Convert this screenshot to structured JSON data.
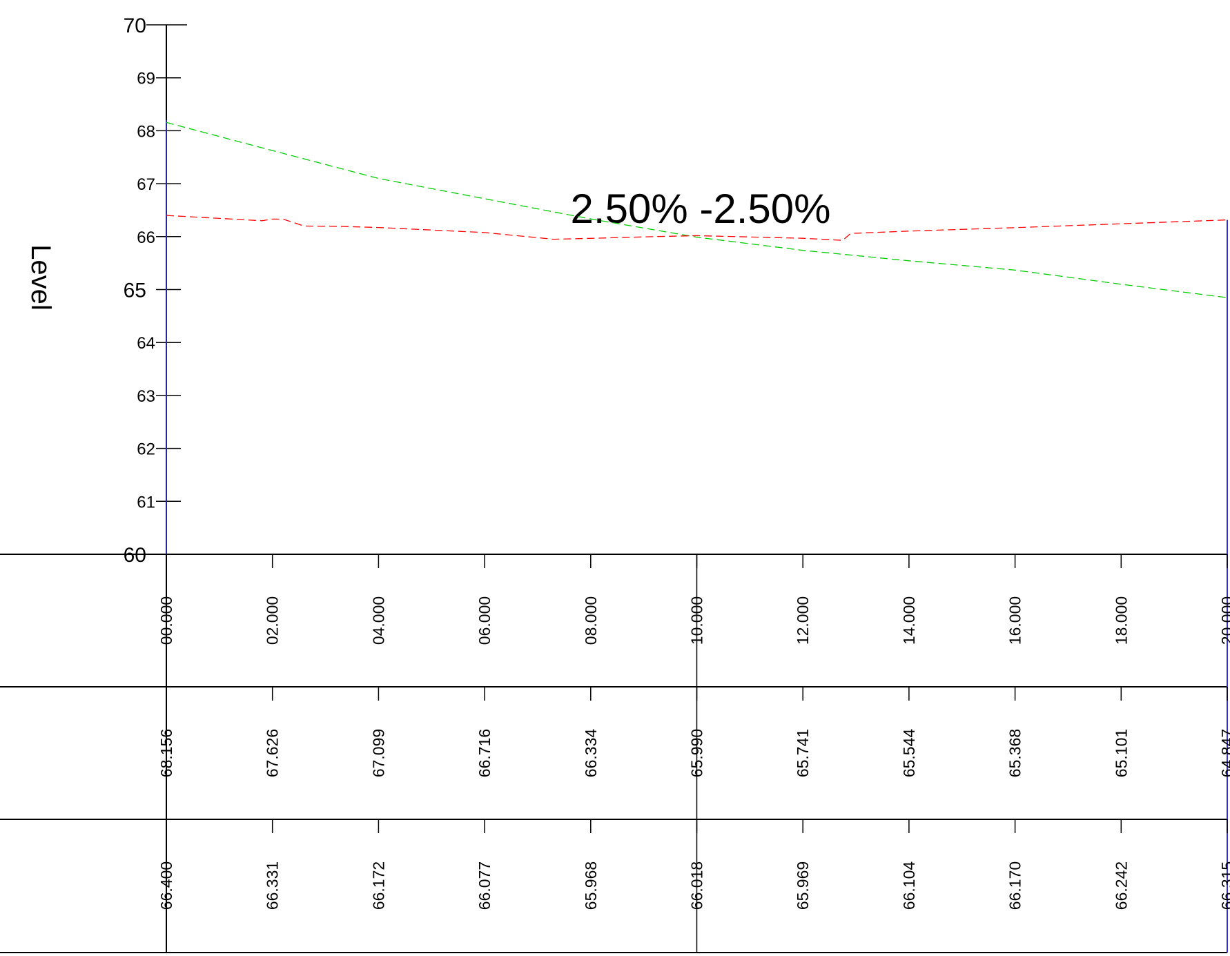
{
  "chart_data": {
    "type": "line",
    "ylabel": "Level",
    "ylim": [
      60,
      70
    ],
    "y_ticks": [
      "70",
      "69",
      "68",
      "67",
      "66",
      "65",
      "64",
      "63",
      "62",
      "61",
      "60"
    ],
    "grade_annotation": "2.50% -2.50%",
    "x": [
      0,
      2,
      4,
      6,
      8,
      10,
      12,
      14,
      16,
      18,
      20
    ],
    "chainage_labels": [
      "00.000",
      "02.000",
      "04.000",
      "06.000",
      "08.000",
      "10.000",
      "12.000",
      "14.000",
      "16.000",
      "18.000",
      "20.000"
    ],
    "row2_labels": [
      "68.156",
      "67.626",
      "67.099",
      "66.716",
      "66.334",
      "65.990",
      "65.741",
      "65.544",
      "65.368",
      "65.101",
      "64.847"
    ],
    "row3_labels": [
      "66.400",
      "66.331",
      "66.172",
      "66.077",
      "65.968",
      "66.018",
      "65.969",
      "66.104",
      "66.170",
      "66.242",
      "66.315"
    ],
    "series": [
      {
        "color": "#00cc00",
        "style": "dashed",
        "points": [
          [
            0,
            68.156
          ],
          [
            2,
            67.626
          ],
          [
            4,
            67.099
          ],
          [
            6,
            66.716
          ],
          [
            8,
            66.334
          ],
          [
            10,
            65.99
          ],
          [
            12,
            65.741
          ],
          [
            14,
            65.544
          ],
          [
            16,
            65.368
          ],
          [
            18,
            65.101
          ],
          [
            20,
            64.847
          ]
        ]
      },
      {
        "color": "#ff0000",
        "style": "dashed",
        "points": [
          [
            0,
            66.4
          ],
          [
            1.8,
            66.3
          ],
          [
            2.0,
            66.331
          ],
          [
            2.2,
            66.33
          ],
          [
            2.6,
            66.2
          ],
          [
            3.4,
            66.19
          ],
          [
            4.0,
            66.172
          ],
          [
            6.0,
            66.077
          ],
          [
            7.3,
            65.95
          ],
          [
            8.0,
            65.968
          ],
          [
            9.2,
            66.0
          ],
          [
            10.0,
            66.018
          ],
          [
            12.0,
            65.969
          ],
          [
            12.75,
            65.93
          ],
          [
            12.9,
            66.06
          ],
          [
            14.0,
            66.104
          ],
          [
            16.0,
            66.17
          ],
          [
            18.0,
            66.242
          ],
          [
            20.0,
            66.315
          ]
        ]
      }
    ]
  },
  "colors": {
    "boundary_line": "#3333cc",
    "grid": "#000000"
  }
}
